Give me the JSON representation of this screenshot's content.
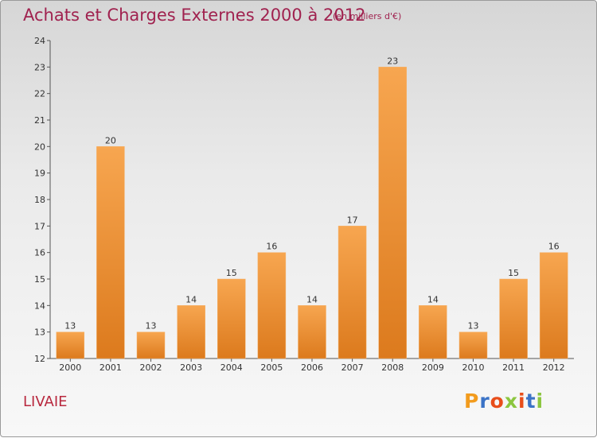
{
  "header": {
    "title": "Achats et Charges Externes 2000 à 2012",
    "subtitle": "(en milliers d'€)"
  },
  "footer": {
    "place": "LIVAIE",
    "logo_text": "Proxiti",
    "logo_colors": [
      "#f29b1d",
      "#3b73c6",
      "#e84e1b",
      "#8cc63f",
      "#e84e1b",
      "#3b73c6",
      "#8cc63f"
    ]
  },
  "chart_data": {
    "type": "bar",
    "title": "Achats et Charges Externes 2000 à 2012",
    "subtitle": "(en milliers d'€)",
    "xlabel": "",
    "ylabel": "",
    "categories": [
      "2000",
      "2001",
      "2002",
      "2003",
      "2004",
      "2005",
      "2006",
      "2007",
      "2008",
      "2009",
      "2010",
      "2011",
      "2012"
    ],
    "values": [
      13,
      20,
      13,
      14,
      15,
      16,
      14,
      17,
      23,
      14,
      13,
      15,
      16
    ],
    "ylim": [
      12,
      24
    ],
    "yticks": [
      12,
      13,
      14,
      15,
      16,
      17,
      18,
      19,
      20,
      21,
      22,
      23,
      24
    ],
    "grid": false,
    "legend": "none",
    "colors": {
      "bar_top": "#f7a650",
      "bar_bottom": "#dc7a1d",
      "axis": "#555555",
      "title": "#a0224f"
    }
  }
}
